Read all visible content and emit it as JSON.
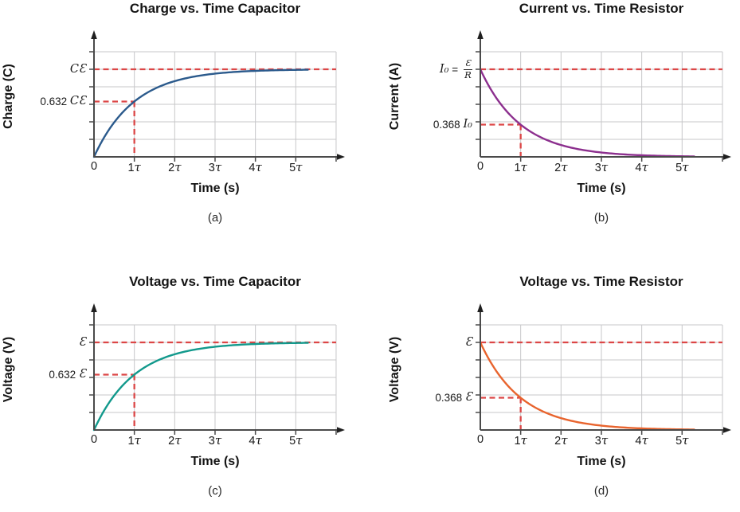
{
  "page": {
    "background": "#ffffff"
  },
  "colors": {
    "grid": "#c7c7c9",
    "axis": "#4a4a4a",
    "arrow": "#1f1f1f",
    "dashed_guide": "#dc4646",
    "text": "#1a1a1a",
    "curve_a": "#2b5a8c",
    "curve_b": "#8c2f8e",
    "curve_c": "#12998c",
    "curve_d": "#e8642e"
  },
  "chart_data": [
    {
      "id": "a",
      "type": "line",
      "title": "Charge vs. Time Capacitor",
      "xlabel": "Time (s)",
      "ylabel": "Charge (C)",
      "panel_label": "(a)",
      "x_axis": {
        "tick_labels": [
          "0",
          "1τ",
          "2τ",
          "3τ",
          "4τ",
          "5τ"
        ],
        "gridlines_tau": 6
      },
      "y_axis": {
        "units_max": 6,
        "gridlines": true,
        "tick_labels": []
      },
      "curve": {
        "kind": "exponential_rise",
        "color": "#2b5a8c",
        "t_end_tau": 5.3
      },
      "dashed_guides": {
        "asymptote_level_units": 5,
        "marker_time_tau": 1,
        "marker_fraction_of_max": 0.632,
        "color": "#dc4646"
      },
      "y_value_labels": [
        {
          "level_units": 5,
          "parts": [
            {
              "text": "Cℰ",
              "math": true
            }
          ]
        },
        {
          "level_units": 3.16,
          "parts": [
            {
              "text": "0.632 "
            },
            {
              "text": "Cℰ",
              "math": true
            }
          ]
        }
      ]
    },
    {
      "id": "b",
      "type": "line",
      "title": "Current vs. Time Resistor",
      "xlabel": "Time (s)",
      "ylabel": "Current (A)",
      "panel_label": "(b)",
      "x_axis": {
        "tick_labels": [
          "0",
          "1τ",
          "2τ",
          "3τ",
          "4τ",
          "5τ"
        ],
        "gridlines_tau": 6
      },
      "y_axis": {
        "units_max": 6,
        "gridlines": true,
        "tick_labels": []
      },
      "curve": {
        "kind": "exponential_decay",
        "color": "#8c2f8e",
        "t_end_tau": 5.3
      },
      "dashed_guides": {
        "asymptote_level_units": 5,
        "marker_time_tau": 1,
        "marker_fraction_of_max": 0.368,
        "color": "#dc4646"
      },
      "y_value_labels": [
        {
          "level_units": 5,
          "parts": [
            {
              "text": "I₀",
              "math": true
            },
            {
              "text": " = "
            },
            {
              "frac": [
                "ℰ",
                "R"
              ]
            }
          ]
        },
        {
          "level_units": 1.84,
          "parts": [
            {
              "text": "0.368 "
            },
            {
              "text": "I₀",
              "math": true
            }
          ]
        }
      ]
    },
    {
      "id": "c",
      "type": "line",
      "title": "Voltage vs. Time Capacitor",
      "xlabel": "Time (s)",
      "ylabel": "Voltage (V)",
      "panel_label": "(c)",
      "x_axis": {
        "tick_labels": [
          "0",
          "1τ",
          "2τ",
          "3τ",
          "4τ",
          "5τ"
        ],
        "gridlines_tau": 6
      },
      "y_axis": {
        "units_max": 6,
        "gridlines": true,
        "tick_labels": []
      },
      "curve": {
        "kind": "exponential_rise",
        "color": "#12998c",
        "t_end_tau": 5.3
      },
      "dashed_guides": {
        "asymptote_level_units": 5,
        "marker_time_tau": 1,
        "marker_fraction_of_max": 0.632,
        "color": "#dc4646"
      },
      "y_value_labels": [
        {
          "level_units": 5,
          "parts": [
            {
              "text": "ℰ",
              "math": true
            }
          ]
        },
        {
          "level_units": 3.16,
          "parts": [
            {
              "text": "0.632 "
            },
            {
              "text": "ℰ",
              "math": true
            }
          ]
        }
      ]
    },
    {
      "id": "d",
      "type": "line",
      "title": "Voltage vs. Time Resistor",
      "xlabel": "Time (s)",
      "ylabel": "Voltage (V)",
      "panel_label": "(d)",
      "x_axis": {
        "tick_labels": [
          "0",
          "1τ",
          "2τ",
          "3τ",
          "4τ",
          "5τ"
        ],
        "gridlines_tau": 6
      },
      "y_axis": {
        "units_max": 6,
        "gridlines": true,
        "tick_labels": []
      },
      "curve": {
        "kind": "exponential_decay",
        "color": "#e8642e",
        "t_end_tau": 5.3
      },
      "dashed_guides": {
        "asymptote_level_units": 5,
        "marker_time_tau": 1,
        "marker_fraction_of_max": 0.368,
        "color": "#dc4646"
      },
      "y_value_labels": [
        {
          "level_units": 5,
          "parts": [
            {
              "text": "ℰ",
              "math": true
            }
          ]
        },
        {
          "level_units": 1.84,
          "parts": [
            {
              "text": "0.368 "
            },
            {
              "text": "ℰ",
              "math": true
            }
          ]
        }
      ]
    }
  ]
}
